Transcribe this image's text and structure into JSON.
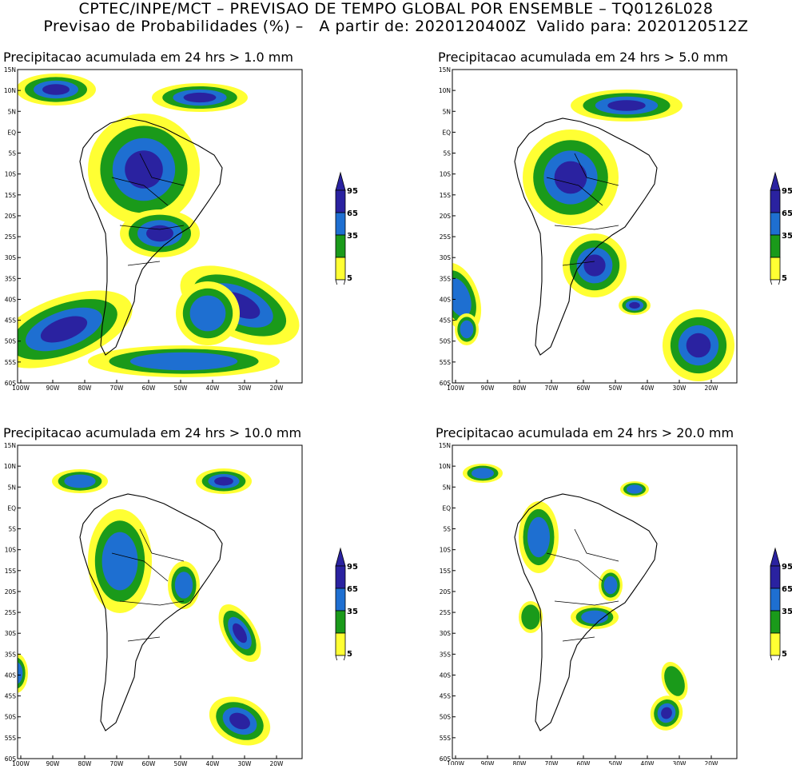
{
  "header": {
    "line1": "CPTEC/INPE/MCT – PREVISAO DE TEMPO GLOBAL POR ENSEMBLE – TQ0126L028",
    "line2": "Previsao de Probabilidades (%) –   A partir de: 2020120400Z  Valido para: 2020120512Z"
  },
  "panels": [
    {
      "title": "Precipitacao acumulada em 24 hrs > 1.0 mm"
    },
    {
      "title": "Precipitacao acumulada em 24 hrs > 5.0 mm"
    },
    {
      "title": "Precipitacao acumulada em 24 hrs > 10.0 mm"
    },
    {
      "title": "Precipitacao acumulada em 24 hrs > 20.0 mm"
    }
  ],
  "axes": {
    "lat_labels": [
      "15N",
      "10N",
      "5N",
      "EQ",
      "5S",
      "10S",
      "15S",
      "20S",
      "25S",
      "30S",
      "35S",
      "40S",
      "45S",
      "50S",
      "55S",
      "60S"
    ],
    "lon_labels": [
      "100W",
      "90W",
      "80W",
      "70W",
      "60W",
      "50W",
      "40W",
      "30W",
      "20W"
    ]
  },
  "legend": {
    "labels": [
      "95",
      "65",
      "35",
      "5"
    ],
    "colors": {
      "c5": "#ffff33",
      "c35": "#1a9a1a",
      "c65": "#1e6fd1",
      "c95": "#2a22a0"
    }
  }
}
